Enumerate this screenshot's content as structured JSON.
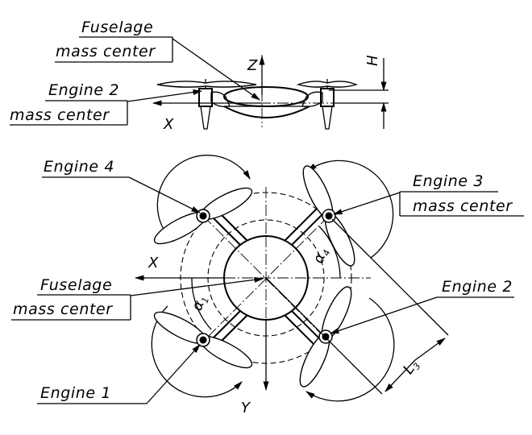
{
  "labels": {
    "side_fuselage_line1": "Fuselage",
    "side_fuselage_line2": "mass center",
    "side_engine2_line1": "Engine 2",
    "side_engine2_line2": "mass center",
    "top_engine4": "Engine 4",
    "top_engine3_line1": "Engine 3",
    "top_engine3_line2": "mass center",
    "top_fuselage_line1": "Fuselage",
    "top_fuselage_line2": "mass center",
    "top_engine2": "Engine 2",
    "top_engine1": "Engine 1"
  },
  "axes": {
    "side_z": "Z",
    "side_x": "X",
    "side_h": "H",
    "top_x": "X",
    "top_y": "Y"
  },
  "dimensions": {
    "alpha1_main": "α",
    "alpha1_sub": "1",
    "alpha4_main": "α",
    "alpha4_sub": "4",
    "length_main": "L",
    "length_sub": "3"
  }
}
